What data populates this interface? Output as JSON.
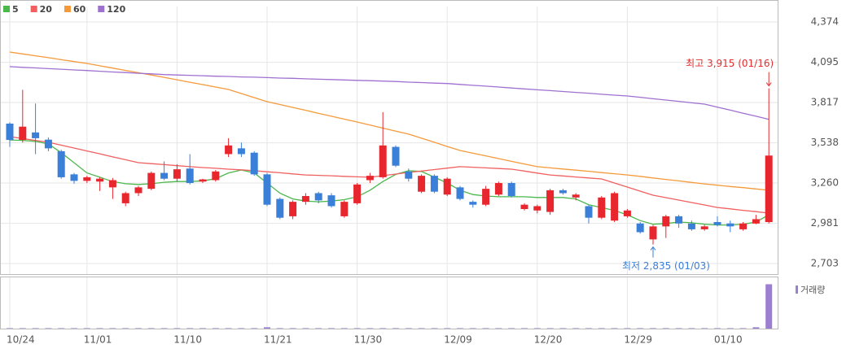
{
  "chart_data": {
    "type": "candlestick",
    "categories": [
      "10/24",
      null,
      null,
      null,
      null,
      null,
      "11/01",
      null,
      null,
      null,
      null,
      null,
      null,
      "11/10",
      null,
      null,
      null,
      null,
      null,
      null,
      "11/21",
      null,
      null,
      null,
      null,
      null,
      null,
      "11/30",
      null,
      null,
      null,
      null,
      null,
      null,
      "12/09",
      null,
      null,
      null,
      null,
      null,
      null,
      "12/20",
      null,
      null,
      null,
      null,
      null,
      null,
      "12/29",
      null,
      null,
      null,
      null,
      null,
      null,
      "01/10",
      null,
      null,
      null,
      null
    ],
    "open": [
      3671,
      3558,
      3610,
      3560,
      3480,
      3320,
      3275,
      3270,
      3230,
      3120,
      3190,
      3220,
      3330,
      3290,
      3360,
      3270,
      3280,
      3460,
      3500,
      3470,
      3320,
      3150,
      3030,
      3130,
      3190,
      3175,
      3030,
      3120,
      3280,
      3300,
      3510,
      3340,
      3200,
      3310,
      3180,
      3230,
      3130,
      3110,
      3180,
      3260,
      3080,
      3070,
      3060,
      3210,
      3160,
      3100,
      3020,
      3000,
      3030,
      2980,
      2870,
      2960,
      3030,
      2980,
      2940,
      2990,
      2980,
      2940,
      2980,
      2990
    ],
    "high": [
      3680,
      3905,
      3810,
      3575,
      3490,
      3330,
      3310,
      3300,
      3295,
      3200,
      3240,
      3340,
      3410,
      3390,
      3460,
      3290,
      3350,
      3570,
      3540,
      3480,
      3330,
      3160,
      3140,
      3190,
      3200,
      3190,
      3140,
      3260,
      3330,
      3750,
      3520,
      3360,
      3320,
      3320,
      3300,
      3240,
      3140,
      3240,
      3270,
      3270,
      3120,
      3110,
      3220,
      3220,
      3190,
      3110,
      3170,
      3200,
      3080,
      2990,
      2970,
      3040,
      3040,
      3000,
      2970,
      3030,
      3000,
      2990,
      3040,
      3915
    ],
    "low": [
      3510,
      3540,
      3460,
      3480,
      3290,
      3255,
      3260,
      3205,
      3150,
      3100,
      3170,
      3210,
      3280,
      3270,
      3250,
      3260,
      3270,
      3440,
      3440,
      3310,
      3100,
      3010,
      3010,
      3110,
      3120,
      3090,
      3020,
      3110,
      3260,
      3290,
      3370,
      3270,
      3190,
      3190,
      3170,
      3140,
      3090,
      3100,
      3170,
      3160,
      3070,
      3050,
      3040,
      3180,
      3140,
      2980,
      3010,
      2990,
      3020,
      2910,
      2835,
      2880,
      2950,
      2930,
      2930,
      2960,
      2920,
      2930,
      2975,
      2980
    ],
    "close": [
      3558,
      3650,
      3570,
      3500,
      3300,
      3275,
      3300,
      3290,
      3280,
      3190,
      3230,
      3330,
      3290,
      3355,
      3260,
      3285,
      3340,
      3520,
      3460,
      3320,
      3110,
      3020,
      3130,
      3170,
      3140,
      3100,
      3130,
      3250,
      3310,
      3520,
      3380,
      3290,
      3310,
      3200,
      3290,
      3150,
      3110,
      3220,
      3260,
      3170,
      3110,
      3100,
      3210,
      3190,
      3180,
      3020,
      3160,
      3190,
      3070,
      2920,
      2960,
      3030,
      2980,
      2940,
      2960,
      2970,
      2960,
      2980,
      3010,
      3450
    ],
    "up_color": "#e8262d",
    "down_color": "#3a7fd8",
    "series": [
      {
        "name": "5",
        "color": "#4cb84c",
        "values": [
          3558,
          3555,
          3548,
          3530,
          3470,
          3400,
          3330,
          3300,
          3270,
          3255,
          3250,
          3255,
          3265,
          3270,
          3270,
          3275,
          3290,
          3330,
          3350,
          3330,
          3260,
          3190,
          3150,
          3135,
          3130,
          3135,
          3145,
          3165,
          3210,
          3270,
          3320,
          3345,
          3340,
          3300,
          3260,
          3210,
          3180,
          3170,
          3165,
          3165,
          3165,
          3160,
          3160,
          3160,
          3150,
          3110,
          3090,
          3070,
          3040,
          3000,
          2975,
          2980,
          2990,
          2985,
          2975,
          2970,
          2970,
          2975,
          2990,
          3040
        ]
      },
      {
        "name": "20",
        "color": "#f06060",
        "values": [
          3581,
          3568,
          3555,
          3542,
          3522,
          3502,
          3482,
          3462,
          3441,
          3421,
          3401,
          3394,
          3387,
          3380,
          3373,
          3367,
          3362,
          3356,
          3351,
          3345,
          3338,
          3331,
          3323,
          3316,
          3313,
          3310,
          3306,
          3303,
          3300,
          3311,
          3322,
          3333,
          3343,
          3353,
          3363,
          3373,
          3369,
          3365,
          3360,
          3356,
          3343,
          3329,
          3316,
          3309,
          3302,
          3295,
          3288,
          3260,
          3232,
          3204,
          3176,
          3159,
          3142,
          3125,
          3108,
          3091,
          3081,
          3071,
          3062,
          3052
        ]
      },
      {
        "name": "60",
        "color": "#f59a3a",
        "values": [
          4166,
          4153,
          4140,
          4127,
          4113,
          4100,
          4087,
          4071,
          4055,
          4039,
          4023,
          4007,
          3991,
          3974,
          3957,
          3941,
          3924,
          3907,
          3879,
          3851,
          3823,
          3803,
          3783,
          3763,
          3742,
          3722,
          3702,
          3682,
          3661,
          3640,
          3619,
          3598,
          3570,
          3542,
          3513,
          3485,
          3466,
          3448,
          3429,
          3410,
          3392,
          3373,
          3365,
          3357,
          3349,
          3341,
          3332,
          3324,
          3316,
          3306,
          3295,
          3285,
          3275,
          3264,
          3254,
          3245,
          3236,
          3228,
          3219,
          3210
        ]
      },
      {
        "name": "120",
        "color": "#a070d0",
        "values": [
          4065,
          4060,
          4056,
          4051,
          4047,
          4042,
          4038,
          4033,
          4028,
          4024,
          4019,
          4015,
          4010,
          4007,
          4005,
          4002,
          3999,
          3997,
          3994,
          3992,
          3989,
          3986,
          3984,
          3981,
          3978,
          3976,
          3973,
          3970,
          3968,
          3965,
          3962,
          3958,
          3955,
          3951,
          3948,
          3942,
          3936,
          3930,
          3924,
          3917,
          3911,
          3905,
          3899,
          3893,
          3887,
          3881,
          3874,
          3868,
          3862,
          3853,
          3843,
          3834,
          3825,
          3815,
          3806,
          3785,
          3764,
          3743,
          3722,
          3700
        ]
      }
    ],
    "volume": {
      "name": "거래량",
      "color": "#9b7fd0",
      "ylim": [
        0,
        110
      ],
      "values": [
        1,
        1,
        1,
        1,
        1,
        1,
        1,
        1,
        1,
        1,
        1,
        1,
        1,
        1,
        1,
        1,
        1,
        1,
        1,
        1,
        3,
        1,
        1,
        1,
        1,
        1,
        1,
        1,
        1,
        1,
        1,
        1,
        1,
        1,
        1,
        1,
        1,
        1,
        1,
        1,
        1,
        1,
        1,
        1,
        1,
        1,
        1,
        1,
        1,
        1,
        1,
        1,
        1,
        1,
        1,
        1,
        1,
        1,
        3,
        100
      ]
    },
    "annotations": {
      "high": "최고 3,915 (01/16)",
      "low": "최저 2,835 (01/03)"
    },
    "ylim": [
      2630,
      4481
    ],
    "yticks": [
      {
        "value": 2703,
        "label": "2,703"
      },
      {
        "value": 2981,
        "label": "2,981"
      },
      {
        "value": 3260,
        "label": "3,260"
      },
      {
        "value": 3538,
        "label": "3,538"
      },
      {
        "value": 3817,
        "label": "3,817"
      },
      {
        "value": 4095,
        "label": "4,095"
      },
      {
        "value": 4374,
        "label": "4,374"
      }
    ],
    "grid": true
  }
}
